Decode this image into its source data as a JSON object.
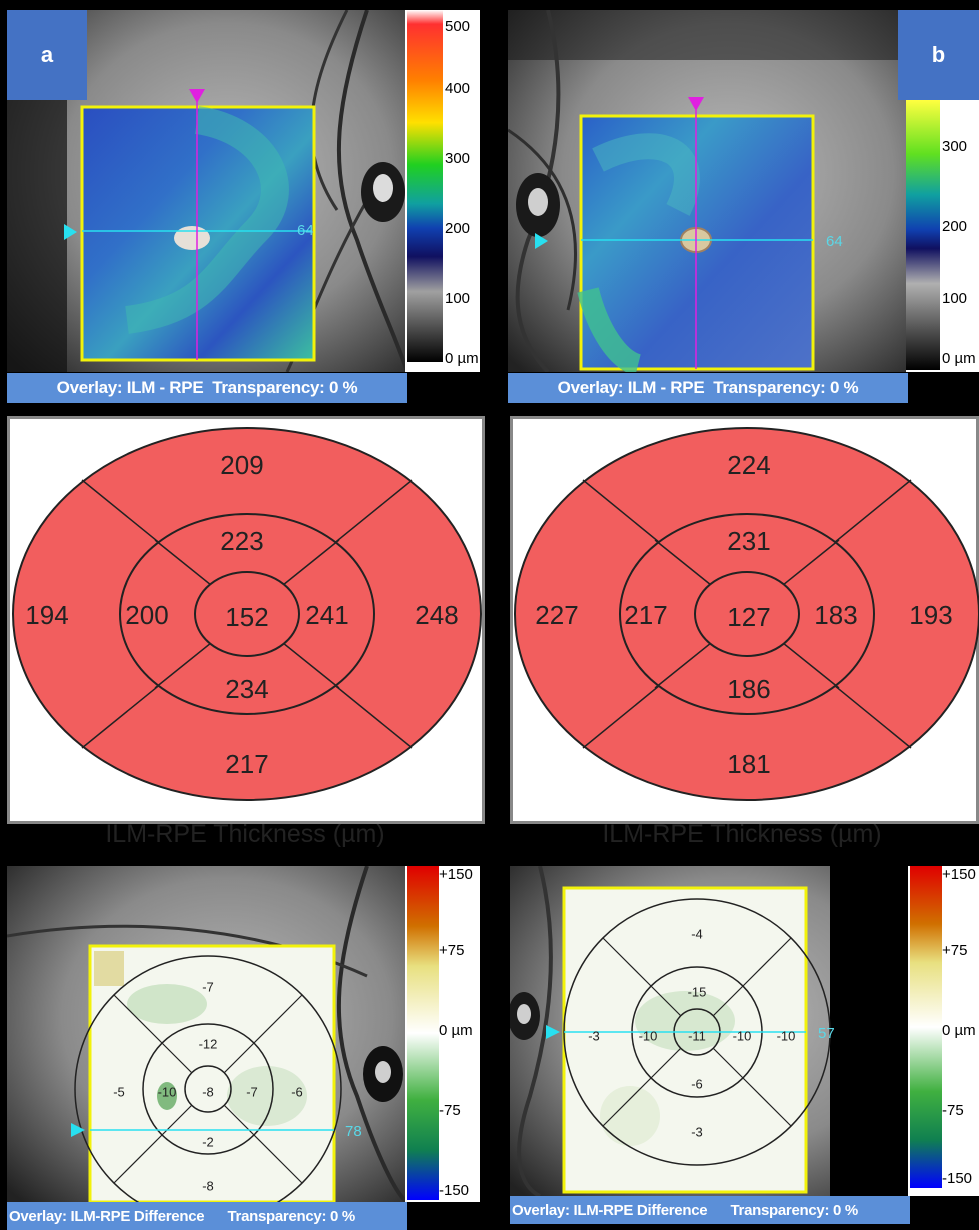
{
  "panels": {
    "a": {
      "badge": "a",
      "overlay_text": "Overlay: ILM - RPE  Transparency: 0 %",
      "scan_line_value": "64",
      "colorbar_ticks": [
        "500",
        "400",
        "300",
        "200",
        "100",
        "0 µm"
      ],
      "thickness_map": {
        "center": "152",
        "inner_superior": "223",
        "inner_inferior": "234",
        "inner_left": "200",
        "inner_right": "241",
        "outer_superior": "209",
        "outer_inferior": "217",
        "outer_left": "194",
        "outer_right": "248",
        "caption": "ILM-RPE Thickness (µm)"
      },
      "difference_map": {
        "center": "-8",
        "inner_superior": "-12",
        "inner_inferior": "-2",
        "inner_left": "-10",
        "inner_right": "-7",
        "outer_superior": "-7",
        "outer_inferior": "-8",
        "outer_left": "-5",
        "outer_right": "-6",
        "scan_line_value": "78",
        "colorbar_ticks": [
          "+150",
          "+75",
          "0 µm",
          "-75",
          "-150"
        ],
        "overlay_text": "Overlay: ILM-RPE Difference      Transparency: 0 %"
      }
    },
    "b": {
      "badge": "b",
      "overlay_text": "Overlay: ILM - RPE  Transparency: 0 %",
      "scan_line_value": "64",
      "colorbar_ticks": [
        "300",
        "200",
        "100",
        "0 µm"
      ],
      "thickness_map": {
        "center": "127",
        "inner_superior": "231",
        "inner_inferior": "186",
        "inner_left": "217",
        "inner_right": "183",
        "outer_superior": "224",
        "outer_inferior": "181",
        "outer_left": "227",
        "outer_right": "193",
        "caption": "ILM-RPE Thickness (µm)"
      },
      "difference_map": {
        "center": "-11",
        "inner_superior": "-15",
        "inner_inferior": "-6",
        "inner_left": "-10",
        "inner_right": "-10",
        "outer_superior": "-4",
        "outer_inferior": "-3",
        "outer_left": "-3",
        "outer_right": "-10",
        "scan_line_value": "57",
        "colorbar_ticks": [
          "+150",
          "+75",
          "0 µm",
          "-75",
          "-150"
        ],
        "overlay_text": "Overlay: ILM-RPE Difference      Transparency: 0 %"
      }
    }
  },
  "colors": {
    "etdrs_fill": "#f25e5e",
    "status_bar": "#5b8fd8",
    "badge": "#4472c4",
    "frame_yellow": "#f2f20a",
    "scan_cyan": "#28e0f0",
    "scan_magenta": "#e020e0"
  }
}
